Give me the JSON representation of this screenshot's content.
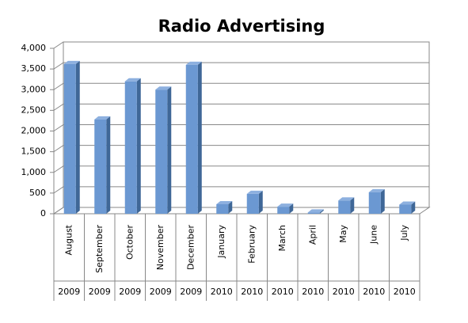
{
  "chart_data": {
    "type": "bar",
    "title": "Radio Advertising",
    "categories": [
      "August",
      "September",
      "October",
      "November",
      "December",
      "January",
      "February",
      "March",
      "April",
      "May",
      "June",
      "July"
    ],
    "years": [
      "2009",
      "2009",
      "2009",
      "2009",
      "2009",
      "2010",
      "2010",
      "2010",
      "2010",
      "2010",
      "2010",
      "2010"
    ],
    "values": [
      3620,
      2280,
      3200,
      3000,
      3600,
      230,
      480,
      170,
      30,
      320,
      520,
      220
    ],
    "color": "#6b98d2",
    "ylim": [
      0,
      4000
    ],
    "yticks": [
      0,
      500,
      {
        "value": 1000,
        "label": "1,000"
      },
      {
        "value": 1500,
        "label": "1,500"
      },
      {
        "value": 2000,
        "label": "2,000"
      },
      {
        "value": 2500,
        "label": "2,500"
      },
      {
        "value": 3000,
        "label": "3,000"
      },
      {
        "value": 3500,
        "label": "3,500"
      },
      {
        "value": 4000,
        "label": "4,000"
      }
    ],
    "grid": true
  }
}
